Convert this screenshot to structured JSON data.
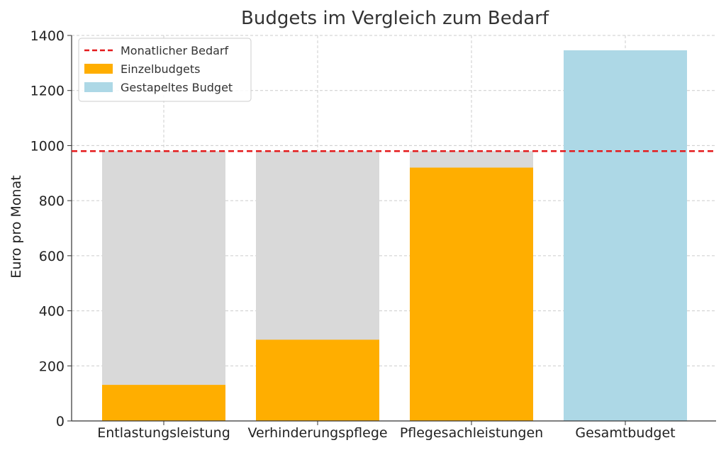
{
  "chart_data": {
    "type": "bar",
    "title": "Budgets im Vergleich zum Bedarf",
    "xlabel": "",
    "ylabel": "Euro pro Monat",
    "ylim": [
      0,
      1400
    ],
    "yticks": [
      0,
      200,
      400,
      600,
      800,
      1000,
      1200,
      1400
    ],
    "grid": true,
    "legend_position": "top-left",
    "categories": [
      "Entlastungsleistung",
      "Verhinderungspflege",
      "Pflegesachleistungen",
      "Gesamtbudget"
    ],
    "need_line": {
      "name": "Monatlicher Bedarf",
      "value": 980,
      "color": "#e41a1c"
    },
    "background_bars": {
      "values": [
        980,
        980,
        980,
        null
      ],
      "color": "#d9d9d9"
    },
    "series": [
      {
        "name": "Einzelbudgets",
        "values": [
          131,
          295,
          920,
          null
        ],
        "color": "#ffae00"
      },
      {
        "name": "Gestapeltes Budget",
        "values": [
          null,
          null,
          null,
          1346
        ],
        "color": "#add8e6"
      }
    ]
  }
}
